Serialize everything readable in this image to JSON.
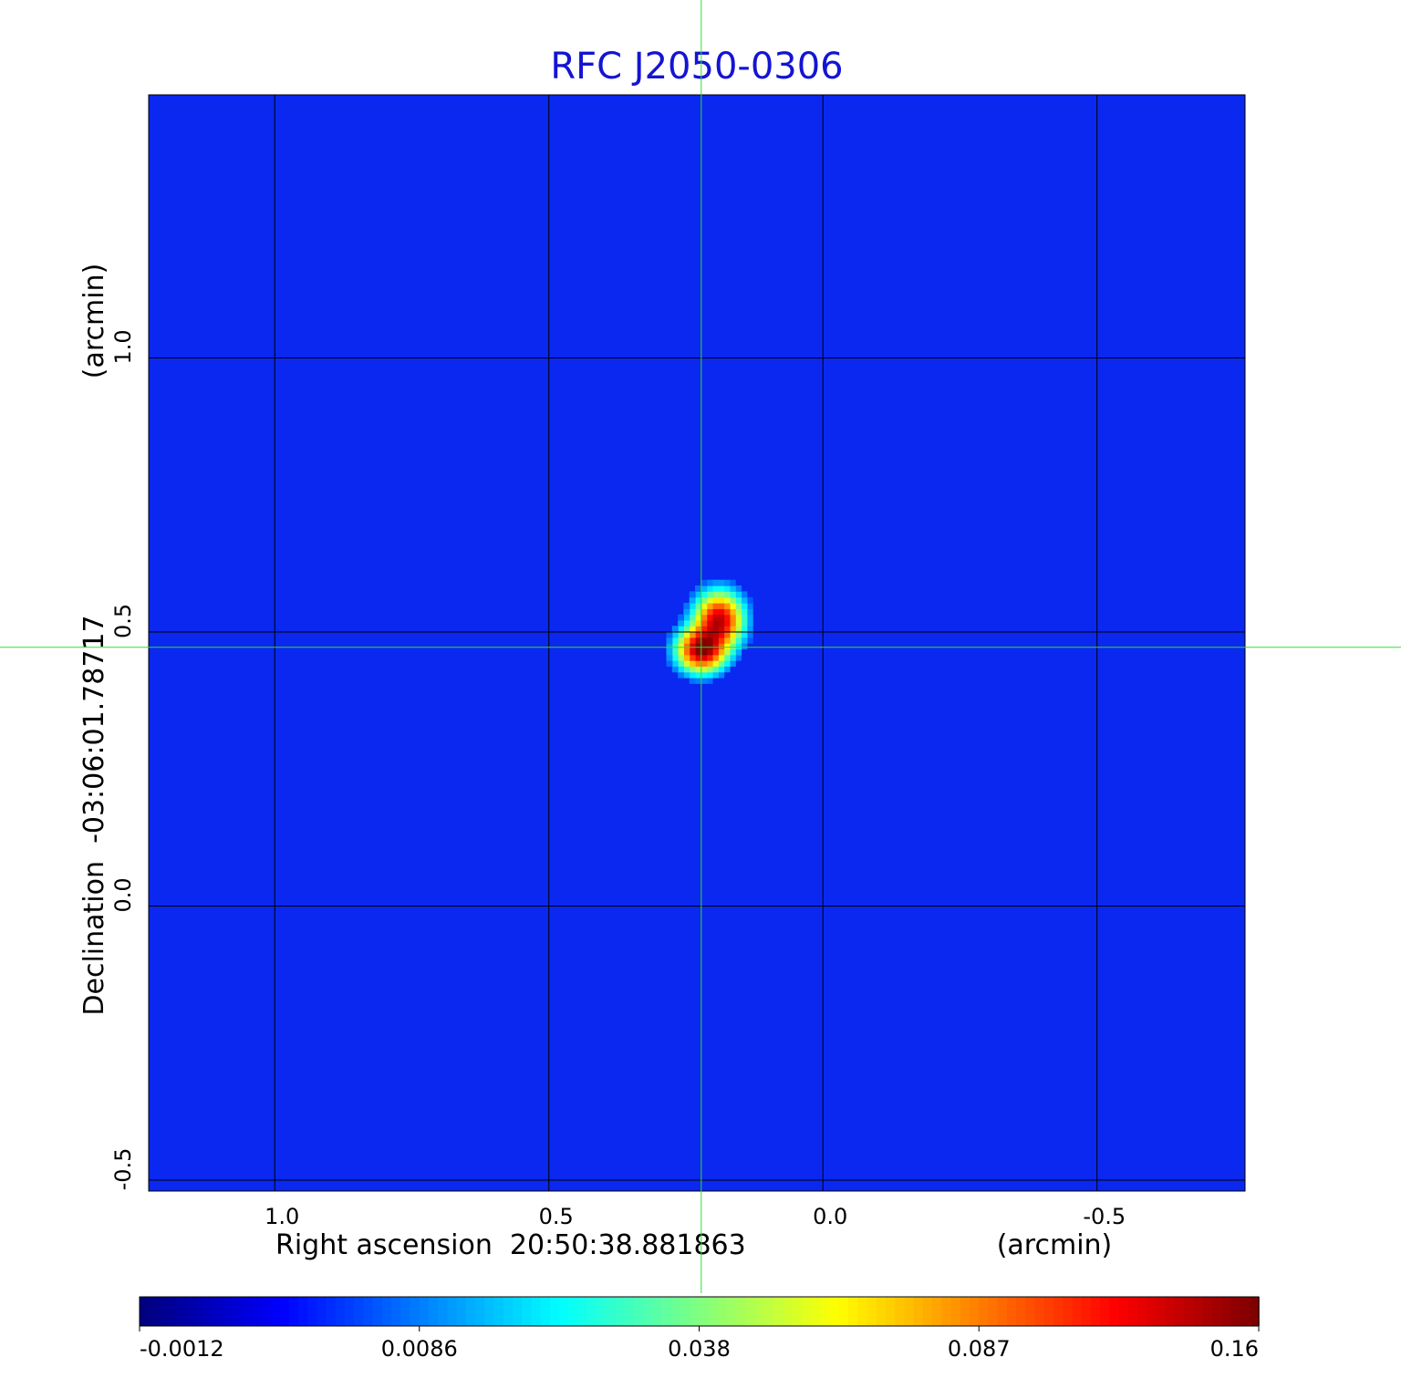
{
  "chart_data": {
    "type": "heatmap",
    "title": "RFC J2050-0306",
    "xlabel": "Right ascension  20:50:38.881863",
    "xunit": "(arcmin)",
    "ylabel": "Declination  -03:06:01.78717",
    "yunit": "(arcmin)",
    "xlim": [
      1.23,
      -0.77
    ],
    "ylim": [
      -0.52,
      1.48
    ],
    "x_ticks": [
      {
        "value": 1.0,
        "label": "1.0"
      },
      {
        "value": 0.5,
        "label": "0.5"
      },
      {
        "value": 0.0,
        "label": "0.0"
      },
      {
        "value": -0.5,
        "label": "-0.5"
      }
    ],
    "y_ticks": [
      {
        "value": 1.0,
        "label": "1.0"
      },
      {
        "value": 0.5,
        "label": "0.5"
      },
      {
        "value": 0.0,
        "label": "0.0"
      },
      {
        "value": -0.5,
        "label": "-0.5"
      }
    ],
    "grid": true,
    "crosshair": {
      "x": 0.222,
      "y": 0.472,
      "color": "#33dd33"
    },
    "colormap": "jet",
    "colorbar": {
      "range": [
        -0.0012,
        0.16
      ],
      "tick_labels": [
        "-0.0012",
        "0.0086",
        "0.038",
        "0.087",
        "0.16"
      ]
    },
    "background_level": 0.0,
    "components": [
      {
        "x": 0.222,
        "y": 0.468,
        "peak": 0.155,
        "sigma_x": 0.026,
        "sigma_y": 0.024
      },
      {
        "x": 0.19,
        "y": 0.522,
        "peak": 0.14,
        "sigma_x": 0.026,
        "sigma_y": 0.03
      }
    ],
    "colors": {
      "background": "#0a28f0",
      "grid": "#000000",
      "title": "#1414d2"
    }
  }
}
